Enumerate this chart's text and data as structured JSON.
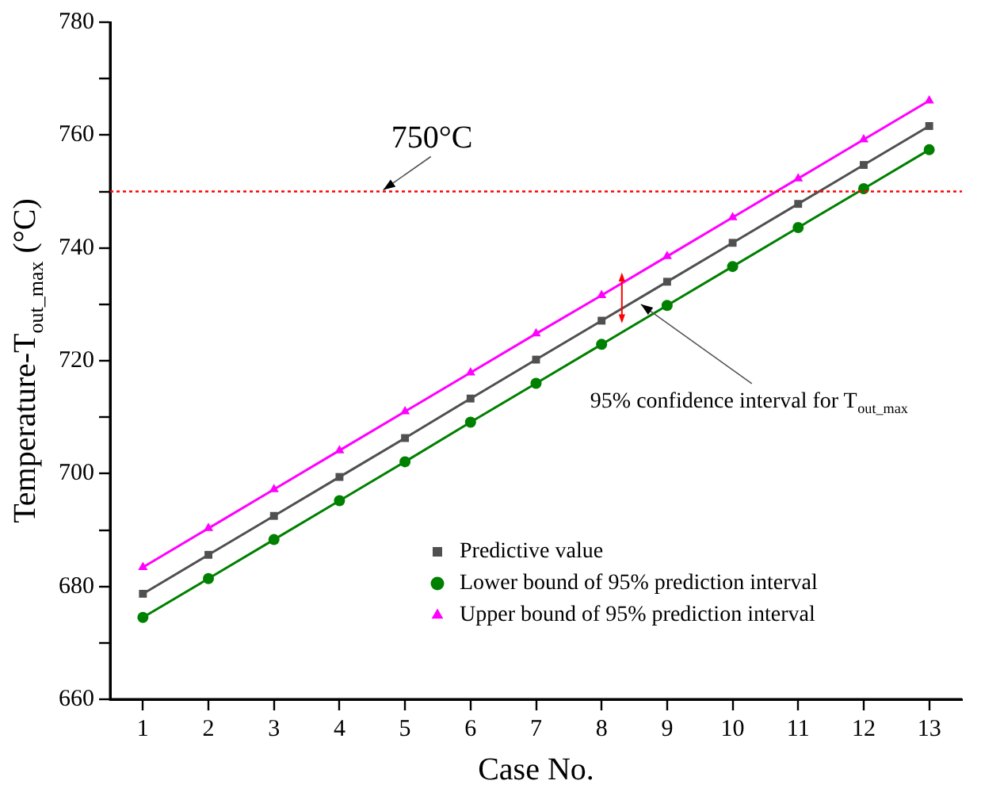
{
  "chart_data": {
    "type": "line",
    "xlabel": "Case No.",
    "ylabel": "Temperature-T$_{out_max}$ (°C)",
    "x": [
      1,
      2,
      3,
      4,
      5,
      6,
      7,
      8,
      9,
      10,
      11,
      12,
      13
    ],
    "xlim": [
      0.5,
      13.5
    ],
    "xticks": [
      1,
      2,
      3,
      4,
      5,
      6,
      7,
      8,
      9,
      10,
      11,
      12,
      13
    ],
    "ylim": [
      660,
      780
    ],
    "yticks": [
      660,
      {
        "value": 670,
        "label": null
      },
      680,
      {
        "value": 690,
        "label": null
      },
      700,
      {
        "value": 710,
        "label": null
      },
      720,
      {
        "value": 730,
        "label": null
      },
      740,
      {
        "value": 750,
        "label": null
      },
      760,
      {
        "value": 770,
        "label": null
      },
      780
    ],
    "series": [
      {
        "name": "Predictive value",
        "color": "#505050",
        "marker": "square",
        "values": [
          678.7,
          685.6,
          692.5,
          699.4,
          706.3,
          713.3,
          720.2,
          727.1,
          734.0,
          740.9,
          747.8,
          754.7,
          761.6
        ]
      },
      {
        "name": "Lower bound of 95% prediction interval",
        "color": "#008000",
        "marker": "circle",
        "values": [
          674.5,
          681.4,
          688.3,
          695.2,
          702.1,
          709.1,
          716.0,
          722.9,
          729.8,
          736.7,
          743.6,
          750.5,
          757.4
        ]
      },
      {
        "name": "Upper bound of 95% prediction interval",
        "color": "#ff00ff",
        "marker": "triangle",
        "values": [
          683.4,
          690.3,
          697.2,
          704.1,
          711.0,
          717.9,
          724.8,
          731.6,
          738.5,
          745.4,
          752.3,
          759.2,
          766.1
        ]
      }
    ],
    "ref_lines": [
      {
        "axis": "y",
        "value": 750,
        "label": "750°C",
        "color": "#ff0000",
        "line_style": "dotted"
      }
    ],
    "annotations": [
      {
        "text": "95% confidence interval for T$_{out_max}$",
        "x": 8.6,
        "y": 730
      }
    ],
    "grid": false,
    "legend": "bottom right",
    "line_style": "solid"
  }
}
